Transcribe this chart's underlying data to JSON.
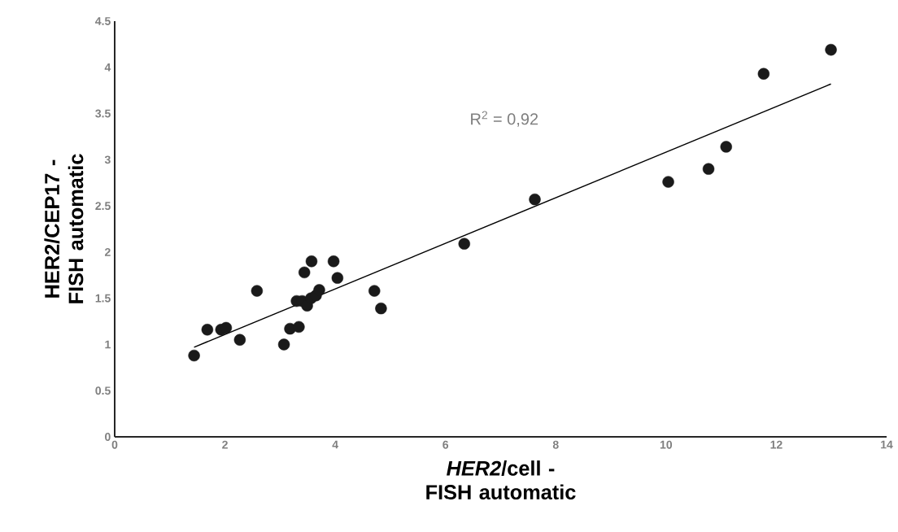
{
  "chart_data": {
    "type": "scatter",
    "xlabel": "*HER2*/cell - FISH automatic",
    "ylabel": "HER2/CEP17 - FISH automatic",
    "annotations": [
      "R$^{2}$ = 0,92"
    ],
    "xlim": [
      0,
      14
    ],
    "ylim": [
      0,
      4.5
    ],
    "xticks": [
      0,
      2,
      4,
      6,
      8,
      10,
      12,
      14
    ],
    "yticks": [
      0,
      0.5,
      1,
      1.5,
      2,
      2.5,
      3,
      3.5,
      4,
      4.5
    ],
    "marker": "circle",
    "series": [
      {
        "color": "#1a1a1a",
        "x": [
          1.44,
          1.68,
          1.93,
          2.02,
          2.27,
          2.58,
          3.07,
          3.18,
          3.34,
          3.3,
          3.4,
          3.49,
          3.56,
          3.65,
          3.71,
          3.44,
          3.57,
          3.97,
          4.04,
          4.71,
          4.83,
          6.34,
          7.62,
          10.04,
          10.77,
          11.09,
          11.77,
          12.99
        ],
        "values": [
          0.88,
          1.16,
          1.16,
          1.18,
          1.05,
          1.58,
          1.0,
          1.17,
          1.19,
          1.47,
          1.47,
          1.42,
          1.5,
          1.53,
          1.59,
          1.78,
          1.9,
          1.9,
          1.72,
          1.58,
          1.39,
          2.09,
          2.57,
          2.76,
          2.9,
          3.14,
          3.93,
          4.19
        ]
      },
      {
        "type": "line",
        "color": "#000000",
        "marker": "none",
        "x": [
          1.44,
          12.99
        ],
        "values": [
          0.97,
          3.82
        ]
      }
    ]
  }
}
